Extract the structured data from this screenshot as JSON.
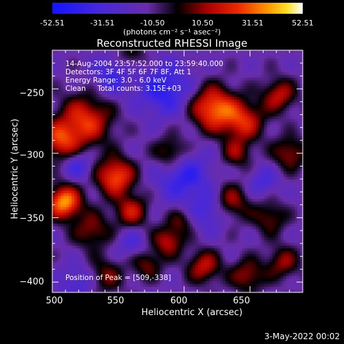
{
  "colorbar": {
    "ticks": [
      "-52.51",
      "-31.51",
      "-10.50",
      "10.50",
      "31.51",
      "52.51"
    ],
    "units": "(photons cm⁻² s⁻¹ asec⁻²)"
  },
  "annotations": {
    "line1": "14-Aug-2004 23:57:52.000 to 23:59:40.000",
    "line2": "Detectors: 3F 4F 5F 6F 7F 8F, Att 1",
    "line3": "Energy Range: 3.0 - 6.0 keV",
    "line4": "Clean     Total counts: 3.15E+03",
    "peak": "Position of Peak = [509,-338]"
  },
  "footer": {
    "date": "3-May-2022 00:02"
  },
  "chart_data": {
    "type": "heatmap",
    "title": "Reconstructed RHESSI Image",
    "xlabel": "Heliocentric X (arcsec)",
    "ylabel": "Heliocentric Y (arcsec)",
    "xlim": [
      500,
      690
    ],
    "ylim": [
      -408,
      -220
    ],
    "xticks": [
      500,
      550,
      600,
      650
    ],
    "yticks": [
      -250,
      -300,
      -350,
      -400
    ],
    "xtick_labels": [
      "500",
      "550",
      "600",
      "650"
    ],
    "ytick_labels": [
      "−250",
      "−300",
      "−350",
      "−400"
    ],
    "zlim": [
      -52.51,
      52.51
    ],
    "peak": [
      509,
      -338
    ],
    "sources": [
      {
        "x": 509,
        "y": -338,
        "amp": 52.5,
        "sigma": 9
      },
      {
        "x": 525,
        "y": -275,
        "amp": 38,
        "sigma": 14
      },
      {
        "x": 505,
        "y": -290,
        "amp": 34,
        "sigma": 10
      },
      {
        "x": 548,
        "y": -318,
        "amp": 44,
        "sigma": 10
      },
      {
        "x": 560,
        "y": -345,
        "amp": 30,
        "sigma": 9
      },
      {
        "x": 530,
        "y": -360,
        "amp": 24,
        "sigma": 10
      },
      {
        "x": 540,
        "y": -395,
        "amp": 22,
        "sigma": 10
      },
      {
        "x": 590,
        "y": -300,
        "amp": 28,
        "sigma": 9
      },
      {
        "x": 622,
        "y": -265,
        "amp": 46,
        "sigma": 12
      },
      {
        "x": 645,
        "y": -275,
        "amp": 34,
        "sigma": 11
      },
      {
        "x": 672,
        "y": -255,
        "amp": 30,
        "sigma": 9
      },
      {
        "x": 680,
        "y": -300,
        "amp": 26,
        "sigma": 9
      },
      {
        "x": 640,
        "y": -300,
        "amp": 22,
        "sigma": 8
      },
      {
        "x": 635,
        "y": -338,
        "amp": 28,
        "sigma": 10
      },
      {
        "x": 665,
        "y": -350,
        "amp": 22,
        "sigma": 9
      },
      {
        "x": 588,
        "y": -368,
        "amp": 30,
        "sigma": 8
      },
      {
        "x": 572,
        "y": -386,
        "amp": 22,
        "sigma": 8
      },
      {
        "x": 615,
        "y": -388,
        "amp": 30,
        "sigma": 9
      },
      {
        "x": 648,
        "y": -395,
        "amp": 26,
        "sigma": 9
      },
      {
        "x": 675,
        "y": -385,
        "amp": 24,
        "sigma": 9
      },
      {
        "x": 598,
        "y": -352,
        "amp": 18,
        "sigma": 7
      },
      {
        "x": 560,
        "y": -225,
        "amp": 16,
        "sigma": 9
      },
      {
        "x": 585,
        "y": -250,
        "amp": -30,
        "sigma": 14
      },
      {
        "x": 600,
        "y": -318,
        "amp": -28,
        "sigma": 14
      },
      {
        "x": 620,
        "y": -345,
        "amp": -22,
        "sigma": 10
      },
      {
        "x": 520,
        "y": -310,
        "amp": -22,
        "sigma": 7
      },
      {
        "x": 545,
        "y": -240,
        "amp": -25,
        "sigma": 10
      },
      {
        "x": 660,
        "y": -322,
        "amp": -18,
        "sigma": 8
      },
      {
        "x": 520,
        "y": -400,
        "amp": -18,
        "sigma": 10
      },
      {
        "x": 560,
        "y": -370,
        "amp": -16,
        "sigma": 8
      }
    ]
  }
}
